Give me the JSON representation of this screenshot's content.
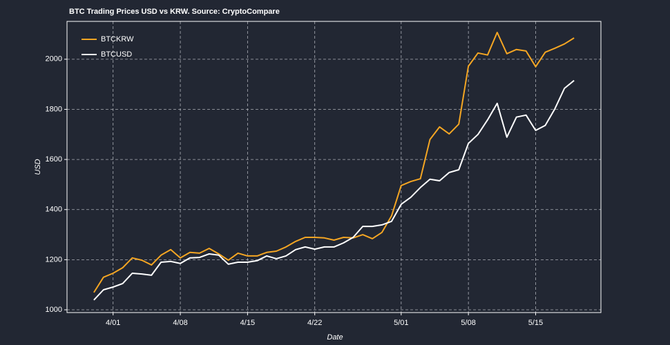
{
  "chart_data": {
    "type": "line",
    "title": "BTC Trading Prices USD vs KRW. Source: CryptoCompare",
    "xlabel": "Date",
    "ylabel": "USD",
    "categories": [
      null,
      null,
      "4/01",
      null,
      null,
      null,
      null,
      null,
      null,
      "4/08",
      null,
      null,
      null,
      null,
      null,
      null,
      "4/15",
      null,
      null,
      null,
      null,
      null,
      null,
      "4/22",
      null,
      null,
      null,
      null,
      null,
      null,
      null,
      null,
      "5/01",
      null,
      null,
      null,
      null,
      null,
      null,
      "5/08",
      null,
      null,
      null,
      null,
      null,
      null,
      "5/15",
      null,
      null,
      null,
      null
    ],
    "series": [
      {
        "name": "BTCKRW",
        "color": "#f5a623",
        "values": [
          1069,
          1130,
          1146,
          1168,
          1207,
          1198,
          1179,
          1218,
          1240,
          1207,
          1229,
          1226,
          1245,
          1223,
          1198,
          1226,
          1215,
          1215,
          1229,
          1234,
          1251,
          1273,
          1289,
          1289,
          1287,
          1278,
          1289,
          1287,
          1300,
          1284,
          1309,
          1375,
          1496,
          1512,
          1523,
          1680,
          1730,
          1702,
          1741,
          1972,
          2025,
          2017,
          2107,
          2022,
          2039,
          2033,
          1970,
          2028,
          2044,
          2061,
          2085
        ]
      },
      {
        "name": "BTCUSD",
        "color": "#ffffff",
        "values": [
          1039,
          1080,
          1091,
          1105,
          1146,
          1143,
          1138,
          1190,
          1193,
          1185,
          1207,
          1209,
          1223,
          1218,
          1182,
          1190,
          1190,
          1196,
          1215,
          1204,
          1215,
          1240,
          1251,
          1242,
          1251,
          1251,
          1267,
          1289,
          1333,
          1333,
          1339,
          1353,
          1421,
          1449,
          1488,
          1521,
          1515,
          1548,
          1559,
          1664,
          1700,
          1758,
          1824,
          1689,
          1769,
          1777,
          1716,
          1736,
          1802,
          1884,
          1915
        ]
      }
    ],
    "ylim": [
      989,
      2151
    ],
    "yticks": [
      1000,
      1200,
      1400,
      1600,
      1800,
      2000
    ],
    "grid": true,
    "legend": "upper left"
  }
}
